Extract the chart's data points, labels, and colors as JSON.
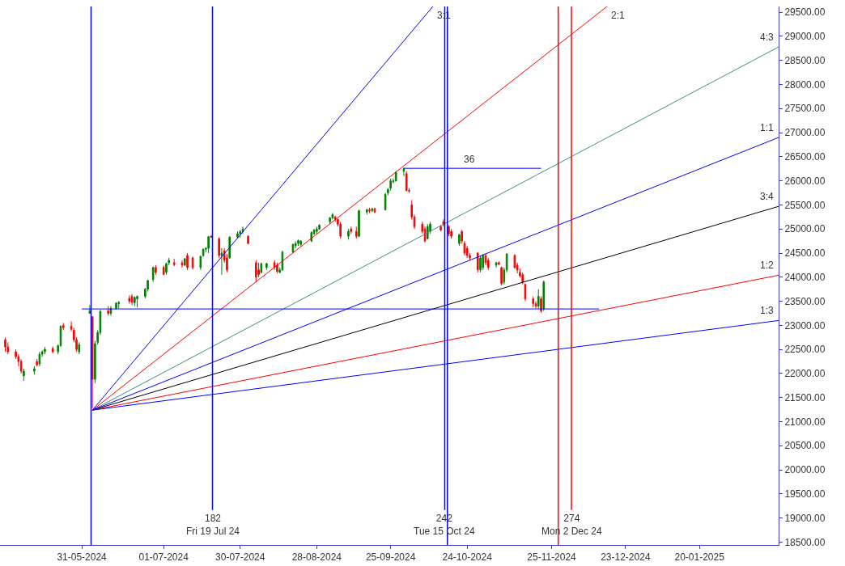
{
  "chart_data": {
    "type": "candlestick",
    "x": [
      "2024-05-02",
      "2024-05-03",
      "2024-05-06",
      "2024-05-07",
      "2024-05-08",
      "2024-05-09",
      "2024-05-13",
      "2024-05-14",
      "2024-05-15",
      "2024-05-16",
      "2024-05-17",
      "2024-05-20",
      "2024-05-22",
      "2024-05-23",
      "2024-05-24",
      "2024-05-27",
      "2024-05-28",
      "2024-05-29",
      "2024-05-30",
      "2024-06-03",
      "2024-06-04",
      "2024-06-05",
      "2024-06-06",
      "2024-06-07",
      "2024-06-10",
      "2024-06-11",
      "2024-06-13",
      "2024-06-14",
      "2024-06-18",
      "2024-06-19",
      "2024-06-20",
      "2024-06-21",
      "2024-06-24",
      "2024-06-25",
      "2024-06-27",
      "2024-06-28",
      "2024-07-01",
      "2024-07-02",
      "2024-07-03",
      "2024-07-05",
      "2024-07-08",
      "2024-07-09",
      "2024-07-10",
      "2024-07-12",
      "2024-07-15",
      "2024-07-16",
      "2024-07-17",
      "2024-07-18",
      "2024-07-19",
      "2024-07-22",
      "2024-07-23",
      "2024-07-24",
      "2024-07-25",
      "2024-07-26",
      "2024-07-29",
      "2024-07-30",
      "2024-07-31",
      "2024-08-02",
      "2024-08-05",
      "2024-08-06",
      "2024-08-07",
      "2024-08-09",
      "2024-08-12",
      "2024-08-13",
      "2024-08-14",
      "2024-08-15",
      "2024-08-19",
      "2024-08-20",
      "2024-08-21",
      "2024-08-22",
      "2024-08-26",
      "2024-08-27",
      "2024-08-28",
      "2024-08-29",
      "2024-09-02",
      "2024-09-03",
      "2024-09-04",
      "2024-09-05",
      "2024-09-06",
      "2024-09-09",
      "2024-09-10",
      "2024-09-12",
      "2024-09-13",
      "2024-09-16",
      "2024-09-17",
      "2024-09-18",
      "2024-09-19",
      "2024-09-23",
      "2024-09-24",
      "2024-09-25",
      "2024-09-26",
      "2024-09-27",
      "2024-09-30",
      "2024-10-01",
      "2024-10-02",
      "2024-10-03",
      "2024-10-04",
      "2024-10-07",
      "2024-10-08",
      "2024-10-09",
      "2024-10-10",
      "2024-10-14",
      "2024-10-15",
      "2024-10-17",
      "2024-10-18",
      "2024-10-21",
      "2024-10-22",
      "2024-10-23",
      "2024-10-24",
      "2024-10-25",
      "2024-10-28",
      "2024-10-29",
      "2024-10-30",
      "2024-10-31",
      "2024-11-01",
      "2024-11-04",
      "2024-11-05",
      "2024-11-06",
      "2024-11-07",
      "2024-11-08",
      "2024-11-11",
      "2024-11-12",
      "2024-11-13",
      "2024-11-14",
      "2024-11-15",
      "2024-11-18",
      "2024-11-19",
      "2024-11-20",
      "2024-11-21",
      "2024-11-22"
    ],
    "ohlc": [
      [
        22700,
        22750,
        22450,
        22550
      ],
      [
        22550,
        22650,
        22400,
        22450
      ],
      [
        22450,
        22500,
        22300,
        22350
      ],
      [
        22350,
        22400,
        22150,
        22250
      ],
      [
        22250,
        22300,
        22000,
        22050
      ],
      [
        21950,
        22100,
        21850,
        22050
      ],
      [
        22050,
        22150,
        21980,
        22100
      ],
      [
        22250,
        22300,
        22150,
        22180
      ],
      [
        22200,
        22450,
        22150,
        22400
      ],
      [
        22400,
        22480,
        22350,
        22450
      ],
      [
        22450,
        22550,
        22400,
        22500
      ],
      [
        22520,
        22560,
        22420,
        22450
      ],
      [
        22450,
        22600,
        22400,
        22580
      ],
      [
        22580,
        23000,
        22550,
        22980
      ],
      [
        23000,
        23050,
        22900,
        22950
      ],
      [
        22980,
        23080,
        22880,
        22920
      ],
      [
        22900,
        22950,
        22650,
        22700
      ],
      [
        22700,
        22750,
        22450,
        22500
      ],
      [
        22450,
        22650,
        22400,
        22600
      ],
      [
        23250,
        23420,
        23250,
        23300
      ],
      [
        23180,
        23180,
        21280,
        21880
      ],
      [
        21880,
        22680,
        21800,
        22620
      ],
      [
        22650,
        22900,
        22600,
        22850
      ],
      [
        22850,
        23320,
        22800,
        23290
      ],
      [
        23300,
        23400,
        23200,
        23250
      ],
      [
        23250,
        23400,
        23200,
        23350
      ],
      [
        23350,
        23480,
        23330,
        23460
      ],
      [
        23450,
        23500,
        23350,
        23480
      ],
      [
        23560,
        23620,
        23450,
        23500
      ],
      [
        23600,
        23650,
        23420,
        23480
      ],
      [
        23470,
        23600,
        23400,
        23580
      ],
      [
        23550,
        23620,
        23370,
        23600
      ],
      [
        23600,
        23780,
        23560,
        23750
      ],
      [
        23750,
        23950,
        23700,
        23930
      ],
      [
        23950,
        24220,
        23900,
        24200
      ],
      [
        24200,
        24250,
        24050,
        24100
      ],
      [
        24200,
        24240,
        24040,
        24060
      ],
      [
        24100,
        24300,
        24050,
        24280
      ],
      [
        24300,
        24400,
        24250,
        24350
      ],
      [
        24300,
        24380,
        24230,
        24260
      ],
      [
        24300,
        24350,
        24200,
        24250
      ],
      [
        24250,
        24400,
        24230,
        24380
      ],
      [
        24450,
        24500,
        24150,
        24200
      ],
      [
        24400,
        24430,
        24160,
        24200
      ],
      [
        24200,
        24450,
        24150,
        24430
      ],
      [
        24450,
        24600,
        24420,
        24580
      ],
      [
        24580,
        24620,
        24520,
        24600
      ],
      [
        24600,
        24860,
        24500,
        24840
      ],
      [
        24850,
        24870,
        24820,
        24830
      ],
      [
        24800,
        24830,
        24400,
        24450
      ],
      [
        24450,
        24600,
        24050,
        24500
      ],
      [
        24550,
        24600,
        24300,
        24350
      ],
      [
        24400,
        24480,
        24100,
        24150
      ],
      [
        24400,
        24850,
        24380,
        24830
      ],
      [
        24830,
        24950,
        24800,
        24900
      ],
      [
        24900,
        24980,
        24820,
        24950
      ],
      [
        24950,
        25050,
        24900,
        25000
      ],
      [
        24850,
        24870,
        24680,
        24700
      ],
      [
        24300,
        24350,
        23900,
        24000
      ],
      [
        24150,
        24300,
        24000,
        24050
      ],
      [
        24100,
        24300,
        24080,
        24280
      ],
      [
        24200,
        24300,
        24150,
        24280
      ],
      [
        24300,
        24350,
        24150,
        24200
      ],
      [
        24250,
        24300,
        24080,
        24120
      ],
      [
        24100,
        24200,
        24080,
        24150
      ],
      [
        24150,
        24550,
        24130,
        24520
      ],
      [
        24520,
        24700,
        24500,
        24680
      ],
      [
        24650,
        24750,
        24600,
        24700
      ],
      [
        24700,
        24780,
        24650,
        24760
      ],
      [
        24680,
        24770,
        24640,
        24750
      ],
      [
        24750,
        24950,
        24730,
        24930
      ],
      [
        24900,
        25000,
        24880,
        24980
      ],
      [
        24950,
        25050,
        24900,
        25000
      ],
      [
        25000,
        25100,
        24980,
        25080
      ],
      [
        25150,
        25250,
        25100,
        25230
      ],
      [
        25230,
        25330,
        25200,
        25300
      ],
      [
        25250,
        25280,
        25150,
        25200
      ],
      [
        25200,
        25220,
        25050,
        25100
      ],
      [
        25100,
        25150,
        24800,
        24850
      ],
      [
        24850,
        25000,
        24780,
        24950
      ],
      [
        25000,
        25050,
        24900,
        24950
      ],
      [
        24950,
        25050,
        24800,
        24850
      ],
      [
        24850,
        25400,
        24830,
        25380
      ],
      [
        25350,
        25420,
        25300,
        25400
      ],
      [
        25400,
        25440,
        25330,
        25380
      ],
      [
        25380,
        25440,
        25350,
        25420
      ],
      [
        25420,
        25440,
        25330,
        25350
      ],
      [
        25400,
        25750,
        25380,
        25720
      ],
      [
        25750,
        25850,
        25700,
        25820
      ],
      [
        25850,
        26050,
        25800,
        26000
      ],
      [
        25980,
        26050,
        25950,
        26000
      ],
      [
        26000,
        26200,
        25980,
        26180
      ],
      [
        26200,
        26280,
        26100,
        26250
      ],
      [
        26150,
        26200,
        25780,
        25800
      ],
      [
        25800,
        25850,
        25750,
        25790
      ],
      [
        25500,
        25600,
        25200,
        25250
      ],
      [
        25250,
        25300,
        25000,
        25050
      ],
      [
        25100,
        25150,
        24900,
        24950
      ],
      [
        25000,
        25050,
        24720,
        24750
      ],
      [
        24800,
        25100,
        24780,
        25050
      ],
      [
        24950,
        25150,
        24900,
        25100
      ],
      [
        25050,
        25080,
        24950,
        24980
      ],
      [
        25150,
        25200,
        25050,
        25100
      ],
      [
        25050,
        25080,
        24850,
        24900
      ],
      [
        24950,
        25000,
        24800,
        24850
      ],
      [
        24700,
        24900,
        24650,
        24880
      ],
      [
        24950,
        24980,
        24700,
        24750
      ],
      [
        24700,
        24750,
        24450,
        24500
      ],
      [
        24600,
        24650,
        24400,
        24450
      ],
      [
        24450,
        24500,
        24350,
        24400
      ],
      [
        24500,
        24520,
        24100,
        24150
      ],
      [
        24150,
        24450,
        24100,
        24400
      ],
      [
        24200,
        24480,
        24150,
        24450
      ],
      [
        24450,
        24480,
        24250,
        24300
      ],
      [
        24350,
        24400,
        24150,
        24200
      ],
      [
        24250,
        24320,
        24200,
        24300
      ],
      [
        24300,
        24330,
        24250,
        24270
      ],
      [
        24200,
        24220,
        23830,
        23870
      ],
      [
        23900,
        24200,
        23850,
        24150
      ],
      [
        24150,
        24500,
        24100,
        24480
      ],
      [
        24450,
        24480,
        24180,
        24200
      ],
      [
        24250,
        24300,
        24080,
        24150
      ],
      [
        24100,
        24180,
        23990,
        24030
      ],
      [
        24050,
        24100,
        23850,
        23900
      ],
      [
        23850,
        23870,
        23500,
        23550
      ],
      [
        23550,
        23600,
        23380,
        23450
      ],
      [
        23450,
        23500,
        23350,
        23400
      ],
      [
        23400,
        23750,
        23350,
        23600
      ],
      [
        23550,
        23600,
        23260,
        23300
      ],
      [
        23350,
        23930,
        23300,
        23900
      ]
    ],
    "colors": [
      "#ff0000",
      "#ff0000",
      "#ff0000",
      "#ff0000",
      "#ff0000",
      "#008000",
      "#008000",
      "#ff0000",
      "#008000",
      "#008000",
      "#008000",
      "#ff0000",
      "#008000",
      "#008000",
      "#ff0000",
      "#ff0000",
      "#ff0000",
      "#ff0000",
      "#008000",
      "#008000",
      "#ff0000",
      "#008000",
      "#008000",
      "#008000",
      "#ff0000",
      "#008000",
      "#008000",
      "#008000",
      "#ff0000",
      "#ff0000",
      "#008000",
      "#008000",
      "#008000",
      "#008000",
      "#008000",
      "#ff0000",
      "#ff0000",
      "#008000",
      "#008000",
      "#ff0000",
      "#ff0000",
      "#008000",
      "#ff0000",
      "#ff0000",
      "#008000",
      "#008000",
      "#008000",
      "#008000",
      "#ff0000",
      "#ff0000",
      "#008000",
      "#ff0000",
      "#ff0000",
      "#008000",
      "#008000",
      "#008000",
      "#008000",
      "#ff0000",
      "#ff0000",
      "#ff0000",
      "#008000",
      "#008000",
      "#ff0000",
      "#ff0000",
      "#008000",
      "#008000",
      "#008000",
      "#008000",
      "#008000",
      "#008000",
      "#008000",
      "#008000",
      "#008000",
      "#008000",
      "#008000",
      "#008000",
      "#ff0000",
      "#ff0000",
      "#ff0000",
      "#008000",
      "#ff0000",
      "#ff0000",
      "#008000",
      "#008000",
      "#ff0000",
      "#008000",
      "#ff0000",
      "#008000",
      "#008000",
      "#008000",
      "#008000",
      "#008000",
      "#008000",
      "#ff0000",
      "#ff0000",
      "#ff0000",
      "#ff0000",
      "#ff0000",
      "#ff0000",
      "#008000",
      "#008000",
      "#ff0000",
      "#ff0000",
      "#ff0000",
      "#ff0000",
      "#008000",
      "#ff0000",
      "#ff0000",
      "#ff0000",
      "#ff0000",
      "#ff0000",
      "#008000",
      "#008000",
      "#ff0000",
      "#ff0000",
      "#008000",
      "#ff0000",
      "#ff0000",
      "#008000",
      "#008000",
      "#ff0000",
      "#ff0000",
      "#ff0000",
      "#ff0000",
      "#ff0000",
      "#ff0000",
      "#ff0000",
      "#008000",
      "#ff0000",
      "#008000"
    ],
    "series": [
      {
        "type": "line",
        "name": "3:1",
        "color": "#0000ff",
        "x": [
          "2024-06-04",
          "2024-10-11"
        ],
        "values": [
          21240,
          29620
        ]
      },
      {
        "type": "line",
        "name": "2:1",
        "color": "#ff0000",
        "x": [
          "2024-06-04",
          "2024-12-16"
        ],
        "values": [
          21240,
          29620
        ]
      },
      {
        "type": "line",
        "name": "4:3",
        "color": "#3c9080",
        "x": [
          "2024-06-04",
          "2025-02-19"
        ],
        "values": [
          21240,
          28780
        ]
      },
      {
        "type": "line",
        "name": "1:1",
        "color": "#0000ff",
        "x": [
          "2024-06-04",
          "2025-02-19"
        ],
        "values": [
          21240,
          26900
        ]
      },
      {
        "type": "line",
        "name": "3:4",
        "color": "#000000",
        "x": [
          "2024-06-04",
          "2025-02-19"
        ],
        "values": [
          21240,
          25470
        ]
      },
      {
        "type": "line",
        "name": "1:2",
        "color": "#ff0000",
        "x": [
          "2024-06-04",
          "2025-02-19"
        ],
        "values": [
          21240,
          24040
        ]
      },
      {
        "type": "line",
        "name": "1:3",
        "color": "#0000ff",
        "x": [
          "2024-06-04",
          "2025-02-19"
        ],
        "values": [
          21240,
          23100
        ]
      },
      {
        "type": "line",
        "color": "#0000ff",
        "x": [
          "2024-05-31",
          "2024-12-13"
        ],
        "values": [
          23340,
          23340
        ]
      },
      {
        "type": "line",
        "color": "#0000ff",
        "x": [
          "2024-09-30",
          "2024-11-21"
        ],
        "values": [
          26260,
          26260
        ]
      }
    ],
    "ref_lines": [
      {
        "axis": "x",
        "value": "2024-06-03T12:00",
        "color": "#0000ff"
      },
      {
        "axis": "x",
        "value": "2024-07-19T12:00",
        "color": "#0000ff",
        "label": "182\nFri 19 Jul 24"
      },
      {
        "axis": "x",
        "value": "2024-10-15T12:00",
        "color": "#0000ff",
        "label": "242\nTue 15 Oct 24"
      },
      {
        "axis": "x",
        "value": "2024-10-16T12:00",
        "color": "#0000ff"
      },
      {
        "axis": "x",
        "value": "2024-11-27T12:00",
        "color": "#ff0000"
      },
      {
        "axis": "x",
        "value": "2024-12-02T12:00",
        "color": "#ff0000",
        "label": "274\nMon 2 Dec 24"
      }
    ],
    "annotations": [
      {
        "text": "36",
        "x": "2024-10-25",
        "y": 26260
      }
    ],
    "xlim": [
      "2024-04-30",
      "2025-02-19"
    ],
    "xticks": [
      {
        "value": "2024-05-31",
        "label": "31-05-2024"
      },
      {
        "value": "2024-07-01",
        "label": "01-07-2024"
      },
      {
        "value": "2024-07-30",
        "label": "30-07-2024"
      },
      {
        "value": "2024-08-28",
        "label": "28-08-2024"
      },
      {
        "value": "2024-09-25",
        "label": "25-09-2024"
      },
      {
        "value": "2024-10-24",
        "label": "24-10-2024"
      },
      {
        "value": "2024-11-25",
        "label": "25-11-2024"
      },
      {
        "value": "2024-12-23",
        "label": "23-12-2024"
      },
      {
        "value": "2025-01-20",
        "label": "20-01-2025"
      }
    ],
    "ylim": [
      18440,
      29620
    ],
    "yticks": [
      {
        "value": 18500,
        "label": "18500.00"
      },
      {
        "value": 19000,
        "label": "19000.00"
      },
      {
        "value": 19500,
        "label": "19500.00"
      },
      {
        "value": 20000,
        "label": "20000.00"
      },
      {
        "value": 20500,
        "label": "20500.00"
      },
      {
        "value": 21000,
        "label": "21000.00"
      },
      {
        "value": 21500,
        "label": "21500.00"
      },
      {
        "value": 22000,
        "label": "22000.00"
      },
      {
        "value": 22500,
        "label": "22500.00"
      },
      {
        "value": 23000,
        "label": "23000.00"
      },
      {
        "value": 23500,
        "label": "23500.00"
      },
      {
        "value": 24000,
        "label": "24000.00"
      },
      {
        "value": 24500,
        "label": "24500.00"
      },
      {
        "value": 25000,
        "label": "25000.00"
      },
      {
        "value": 25500,
        "label": "25500.00"
      },
      {
        "value": 26000,
        "label": "26000.00"
      },
      {
        "value": 26500,
        "label": "26500.00"
      },
      {
        "value": 27000,
        "label": "27000.00"
      },
      {
        "value": 27500,
        "label": "27500.00"
      },
      {
        "value": 28000,
        "label": "28000.00"
      },
      {
        "value": 28500,
        "label": "28500.00"
      },
      {
        "value": 29000,
        "label": "29000.00"
      },
      {
        "value": 29500,
        "label": "29500.00"
      }
    ],
    "grid": false,
    "legend": false
  }
}
